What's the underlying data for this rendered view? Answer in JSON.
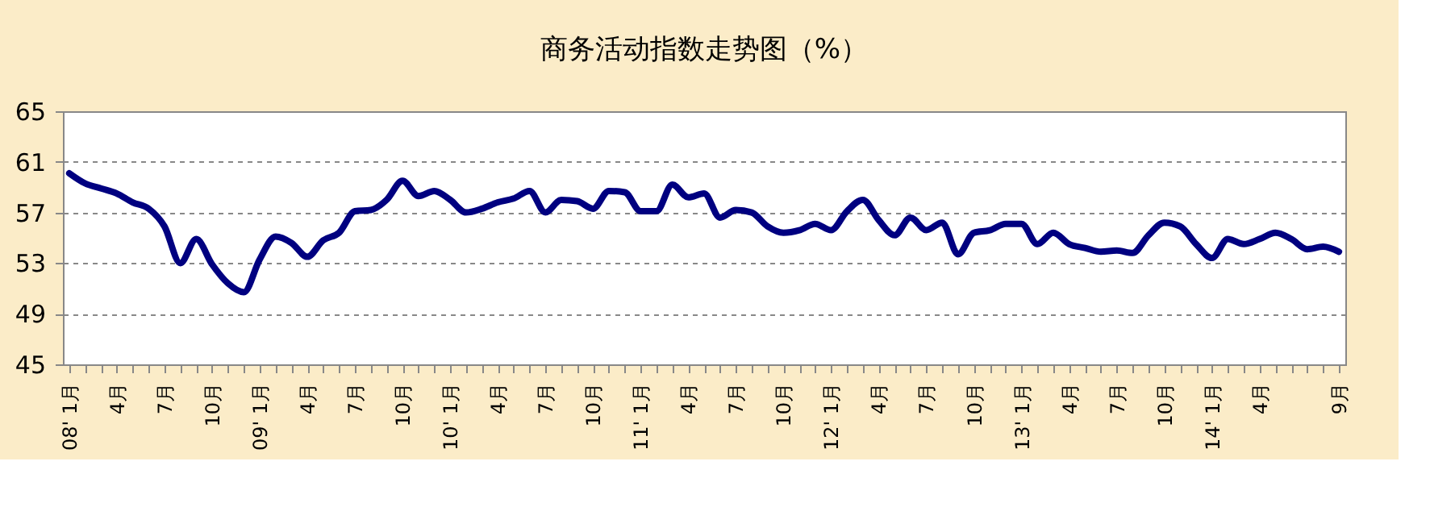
{
  "chart_data": {
    "type": "line",
    "title": "商务活动指数走势图（%）",
    "categories": [
      "08' 1月",
      null,
      null,
      "4月",
      null,
      null,
      "7月",
      null,
      null,
      "10月",
      null,
      null,
      "09' 1月",
      null,
      null,
      "4月",
      null,
      null,
      "7月",
      null,
      null,
      "10月",
      null,
      null,
      "10' 1月",
      null,
      null,
      "4月",
      null,
      null,
      "7月",
      null,
      null,
      "10月",
      null,
      null,
      "11' 1月",
      null,
      null,
      "4月",
      null,
      null,
      "7月",
      null,
      null,
      "10月",
      null,
      null,
      "12' 1月",
      null,
      null,
      "4月",
      null,
      null,
      "7月",
      null,
      null,
      "10月",
      null,
      null,
      "13' 1月",
      null,
      null,
      "4月",
      null,
      null,
      "7月",
      null,
      null,
      "10月",
      null,
      null,
      "14' 1月",
      null,
      null,
      "4月",
      null,
      null,
      null,
      null,
      "9月"
    ],
    "series": [
      {
        "color": "#000080",
        "values": [
          60.1,
          59.3,
          58.9,
          58.5,
          57.8,
          57.3,
          55.9,
          53.0,
          54.9,
          52.9,
          51.4,
          50.7,
          53.3,
          55.1,
          54.6,
          53.5,
          54.8,
          55.4,
          57.1,
          57.2,
          58.0,
          59.5,
          58.3,
          58.7,
          58.0,
          57.0,
          57.3,
          57.8,
          58.1,
          58.7,
          57.0,
          58.0,
          57.9,
          57.3,
          58.7,
          58.6,
          57.1,
          57.1,
          59.2,
          58.2,
          58.5,
          56.6,
          57.2,
          57.0,
          55.9,
          55.4,
          55.6,
          56.1,
          55.6,
          57.1,
          58.0,
          56.4,
          55.2,
          56.6,
          55.6,
          56.2,
          53.7,
          55.4,
          55.6,
          56.1,
          56.1,
          54.5,
          55.4,
          54.5,
          54.2,
          53.9,
          54.0,
          53.8,
          55.2,
          56.2,
          55.9,
          54.5,
          53.4,
          54.9,
          54.5,
          54.9,
          55.4,
          54.9,
          54.1,
          54.3,
          53.9
        ]
      }
    ],
    "ylim": [
      45,
      65
    ],
    "yticks": [
      45,
      49,
      53,
      57,
      61,
      65
    ],
    "grid": "y",
    "line_style": "solid",
    "marker": "none",
    "legend": false
  }
}
